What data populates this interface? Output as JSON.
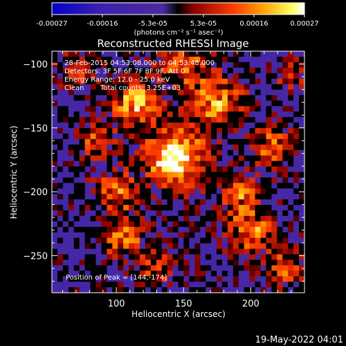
{
  "chart_data": {
    "type": "heatmap",
    "title": "Reconstructed RHESSI Image",
    "xlabel": "Heliocentric X (arcsec)",
    "ylabel": "Heliocentric Y (arcsec)",
    "xlim": [
      52,
      240
    ],
    "ylim": [
      -279,
      -90
    ],
    "xticks": [
      100,
      150,
      200
    ],
    "yticks": [
      -100,
      -150,
      -200,
      -250
    ],
    "colorbar": {
      "range": [
        -0.00027,
        0.00027
      ],
      "ticks": [
        "-0.00027",
        "-0.00016",
        "-5.3e-05",
        "5.3e-05",
        "0.00016",
        "0.00027"
      ],
      "unit_label": "(photons cm⁻² s⁻¹ asec⁻²)",
      "stops": [
        "#0000cc",
        "#3b1fb0",
        "#4a2aa0",
        "#000000",
        "#8b0000",
        "#ff3c00",
        "#ffa500",
        "#ffff66",
        "#ffffff"
      ]
    },
    "annotations": {
      "time": "28-Feb-2015 04:53:08.000 to 04:53:48.000",
      "detectors": "Detectors: 3F 5F 6F 7F 8F 9F, Att 0",
      "energy": "Energy Range: 12.0 - 25.0 keV",
      "method": "Clean",
      "counts": "Total counts: 3.25E+03",
      "peak": "Position of Peak = [144,-174]"
    },
    "peak": [
      144,
      -174
    ]
  },
  "footer": {
    "timestamp": "19-May-2022 04:01"
  }
}
